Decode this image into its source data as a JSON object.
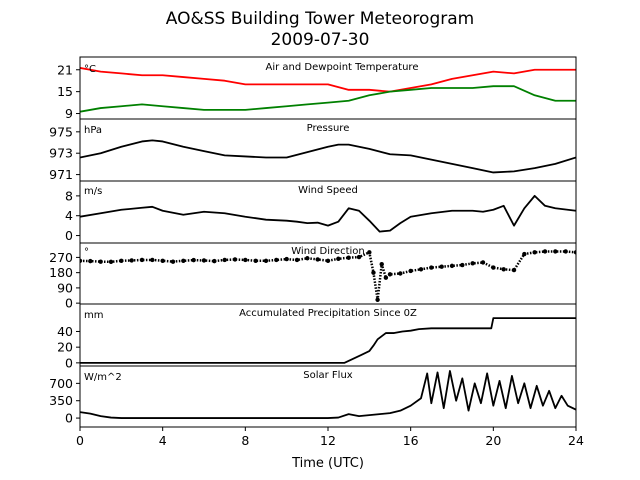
{
  "figure": {
    "title_line1": "AO&SS Building Tower Meteorogram",
    "title_line2": "2009-07-30",
    "xlabel": "Time (UTC)"
  },
  "chart_data": [
    {
      "type": "line",
      "title": "Air and Dewpoint Temperature",
      "unit": "°C",
      "ylim": [
        7.5,
        24.5
      ],
      "yticks": [
        "21",
        "15",
        "9"
      ],
      "ytick_values": [
        21,
        15,
        9
      ],
      "series": [
        {
          "color": "#ff0000",
          "x": [
            0,
            1,
            2,
            3,
            4,
            5,
            6,
            7,
            8,
            9,
            10,
            11,
            12,
            13,
            14,
            15,
            16,
            17,
            18,
            19,
            20,
            21,
            22,
            23,
            24
          ],
          "values": [
            21.5,
            20.5,
            20.0,
            19.5,
            19.5,
            19.0,
            18.5,
            18.0,
            17.0,
            17.0,
            17.0,
            17.0,
            17.0,
            15.5,
            15.5,
            15.0,
            16.0,
            17.0,
            18.5,
            19.5,
            20.5,
            20.0,
            21.0,
            21.0,
            21.0
          ]
        },
        {
          "color": "#008000",
          "x": [
            0,
            1,
            2,
            3,
            4,
            5,
            6,
            7,
            8,
            9,
            10,
            11,
            12,
            13,
            14,
            15,
            16,
            17,
            18,
            19,
            20,
            21,
            22,
            23,
            24
          ],
          "values": [
            9.5,
            10.5,
            11.0,
            11.5,
            11.0,
            10.5,
            10.0,
            10.0,
            10.0,
            10.5,
            11.0,
            11.5,
            12.0,
            12.5,
            14.0,
            15.0,
            15.5,
            16.0,
            16.0,
            16.0,
            16.5,
            16.5,
            14.0,
            12.5,
            12.5
          ]
        }
      ]
    },
    {
      "type": "line",
      "title": "Pressure",
      "unit": "hPa",
      "ylim": [
        970.4,
        976.2
      ],
      "yticks": [
        "975",
        "973",
        "971"
      ],
      "ytick_values": [
        975,
        973,
        971
      ],
      "series": [
        {
          "color": "#000000",
          "x": [
            0,
            1,
            2,
            3,
            3.5,
            4,
            5,
            6,
            7,
            8,
            9,
            10,
            11,
            12,
            12.5,
            13,
            14,
            15,
            16,
            17,
            18,
            19,
            20,
            21,
            22,
            23,
            24
          ],
          "values": [
            972.6,
            973.0,
            973.6,
            974.1,
            974.2,
            974.1,
            973.6,
            973.2,
            972.8,
            972.7,
            972.6,
            972.6,
            973.1,
            973.6,
            973.8,
            973.8,
            973.4,
            972.9,
            972.8,
            972.4,
            972.0,
            971.6,
            971.2,
            971.3,
            971.6,
            972.0,
            972.6
          ]
        }
      ]
    },
    {
      "type": "line",
      "title": "Wind Speed",
      "unit": "m/s",
      "ylim": [
        -1.5,
        11.0
      ],
      "yticks": [
        "8",
        "4",
        "0"
      ],
      "ytick_values": [
        8,
        4,
        0
      ],
      "series": [
        {
          "color": "#000000",
          "x": [
            0,
            1,
            2,
            3,
            3.5,
            4,
            5,
            6,
            7,
            8,
            9,
            10,
            10.5,
            11,
            11.5,
            12,
            12.5,
            13,
            13.5,
            14,
            14.5,
            15,
            15.5,
            16,
            17,
            18,
            19,
            19.5,
            20,
            20.5,
            21,
            21.5,
            22,
            22.5,
            23,
            24
          ],
          "values": [
            3.8,
            4.5,
            5.2,
            5.6,
            5.8,
            5.0,
            4.2,
            4.8,
            4.5,
            3.8,
            3.2,
            3.0,
            2.8,
            2.5,
            2.6,
            2.0,
            2.8,
            5.5,
            5.0,
            3.0,
            0.8,
            1.0,
            2.5,
            3.8,
            4.5,
            5.0,
            5.0,
            4.8,
            5.2,
            6.0,
            2.0,
            5.5,
            8.0,
            6.0,
            5.5,
            5.0
          ]
        }
      ]
    },
    {
      "type": "scatter",
      "title": "Wind Direction",
      "unit": "°",
      "ylim": [
        -5,
        355
      ],
      "yticks": [
        "270",
        "180",
        "90",
        "0"
      ],
      "ytick_values": [
        270,
        180,
        90,
        0
      ],
      "series": [
        {
          "color": "#000000",
          "x": [
            0,
            0.5,
            1,
            1.5,
            2,
            2.5,
            3,
            3.5,
            4,
            4.5,
            5,
            5.5,
            6,
            6.5,
            7,
            7.5,
            8,
            8.5,
            9,
            9.5,
            10,
            10.5,
            11,
            11.5,
            12,
            12.5,
            13,
            13.5,
            14,
            14.2,
            14.4,
            14.6,
            14.8,
            15,
            15.5,
            16,
            16.5,
            17,
            17.5,
            18,
            18.5,
            19,
            19.5,
            20,
            20.5,
            21,
            21.5,
            22,
            22.5,
            23,
            23.5,
            24
          ],
          "values": [
            250,
            248,
            245,
            244,
            250,
            252,
            255,
            255,
            250,
            245,
            250,
            254,
            252,
            248,
            255,
            258,
            255,
            250,
            250,
            255,
            260,
            255,
            265,
            258,
            250,
            262,
            268,
            272,
            300,
            180,
            20,
            230,
            150,
            170,
            175,
            190,
            200,
            210,
            215,
            220,
            225,
            235,
            240,
            210,
            200,
            195,
            290,
            300,
            305,
            305,
            305,
            300
          ]
        }
      ]
    },
    {
      "type": "line",
      "title": "Accumulated Precipitation Since 0Z",
      "unit": "mm",
      "ylim": [
        -4,
        75
      ],
      "yticks": [
        "40",
        "20",
        "0"
      ],
      "ytick_values": [
        40,
        20,
        0
      ],
      "series": [
        {
          "color": "#000000",
          "x": [
            0,
            12.8,
            13.2,
            13.6,
            14.0,
            14.2,
            14.4,
            14.6,
            14.8,
            15.2,
            15.6,
            16.0,
            16.4,
            17.0,
            18.0,
            19.0,
            19.9,
            20.0,
            21.0,
            22.0,
            24.0
          ],
          "values": [
            0,
            0,
            5,
            10,
            15,
            22,
            30,
            34,
            38,
            38,
            40,
            41,
            43,
            44,
            44,
            44,
            44,
            57,
            57,
            57,
            57
          ]
        }
      ]
    },
    {
      "type": "line",
      "title": "Solar Flux",
      "unit": "W/m^2",
      "ylim": [
        -180,
        1050
      ],
      "yticks": [
        "700",
        "350",
        "0"
      ],
      "ytick_values": [
        700,
        350,
        0
      ],
      "series": [
        {
          "color": "#000000",
          "x": [
            0,
            0.5,
            1,
            1.5,
            2,
            3,
            4,
            5,
            6,
            7,
            8,
            9,
            10,
            11,
            12,
            12.5,
            13,
            13.5,
            14,
            14.5,
            15,
            15.5,
            16,
            16.5,
            16.8,
            17,
            17.3,
            17.6,
            17.9,
            18.2,
            18.5,
            18.8,
            19.1,
            19.4,
            19.7,
            20,
            20.3,
            20.6,
            20.9,
            21.2,
            21.5,
            21.8,
            22.1,
            22.4,
            22.7,
            23,
            23.3,
            23.6,
            24
          ],
          "values": [
            120,
            90,
            40,
            10,
            0,
            0,
            0,
            0,
            0,
            0,
            0,
            0,
            0,
            0,
            0,
            10,
            80,
            40,
            60,
            80,
            100,
            150,
            250,
            400,
            900,
            300,
            920,
            200,
            950,
            350,
            800,
            150,
            700,
            300,
            900,
            250,
            750,
            200,
            850,
            300,
            700,
            200,
            650,
            250,
            550,
            200,
            450,
            250,
            170
          ]
        }
      ]
    }
  ],
  "xaxis": {
    "xlim": [
      0,
      24
    ],
    "ticks": [
      "0",
      "4",
      "8",
      "12",
      "16",
      "20",
      "24"
    ],
    "tick_values": [
      0,
      4,
      8,
      12,
      16,
      20,
      24
    ]
  }
}
